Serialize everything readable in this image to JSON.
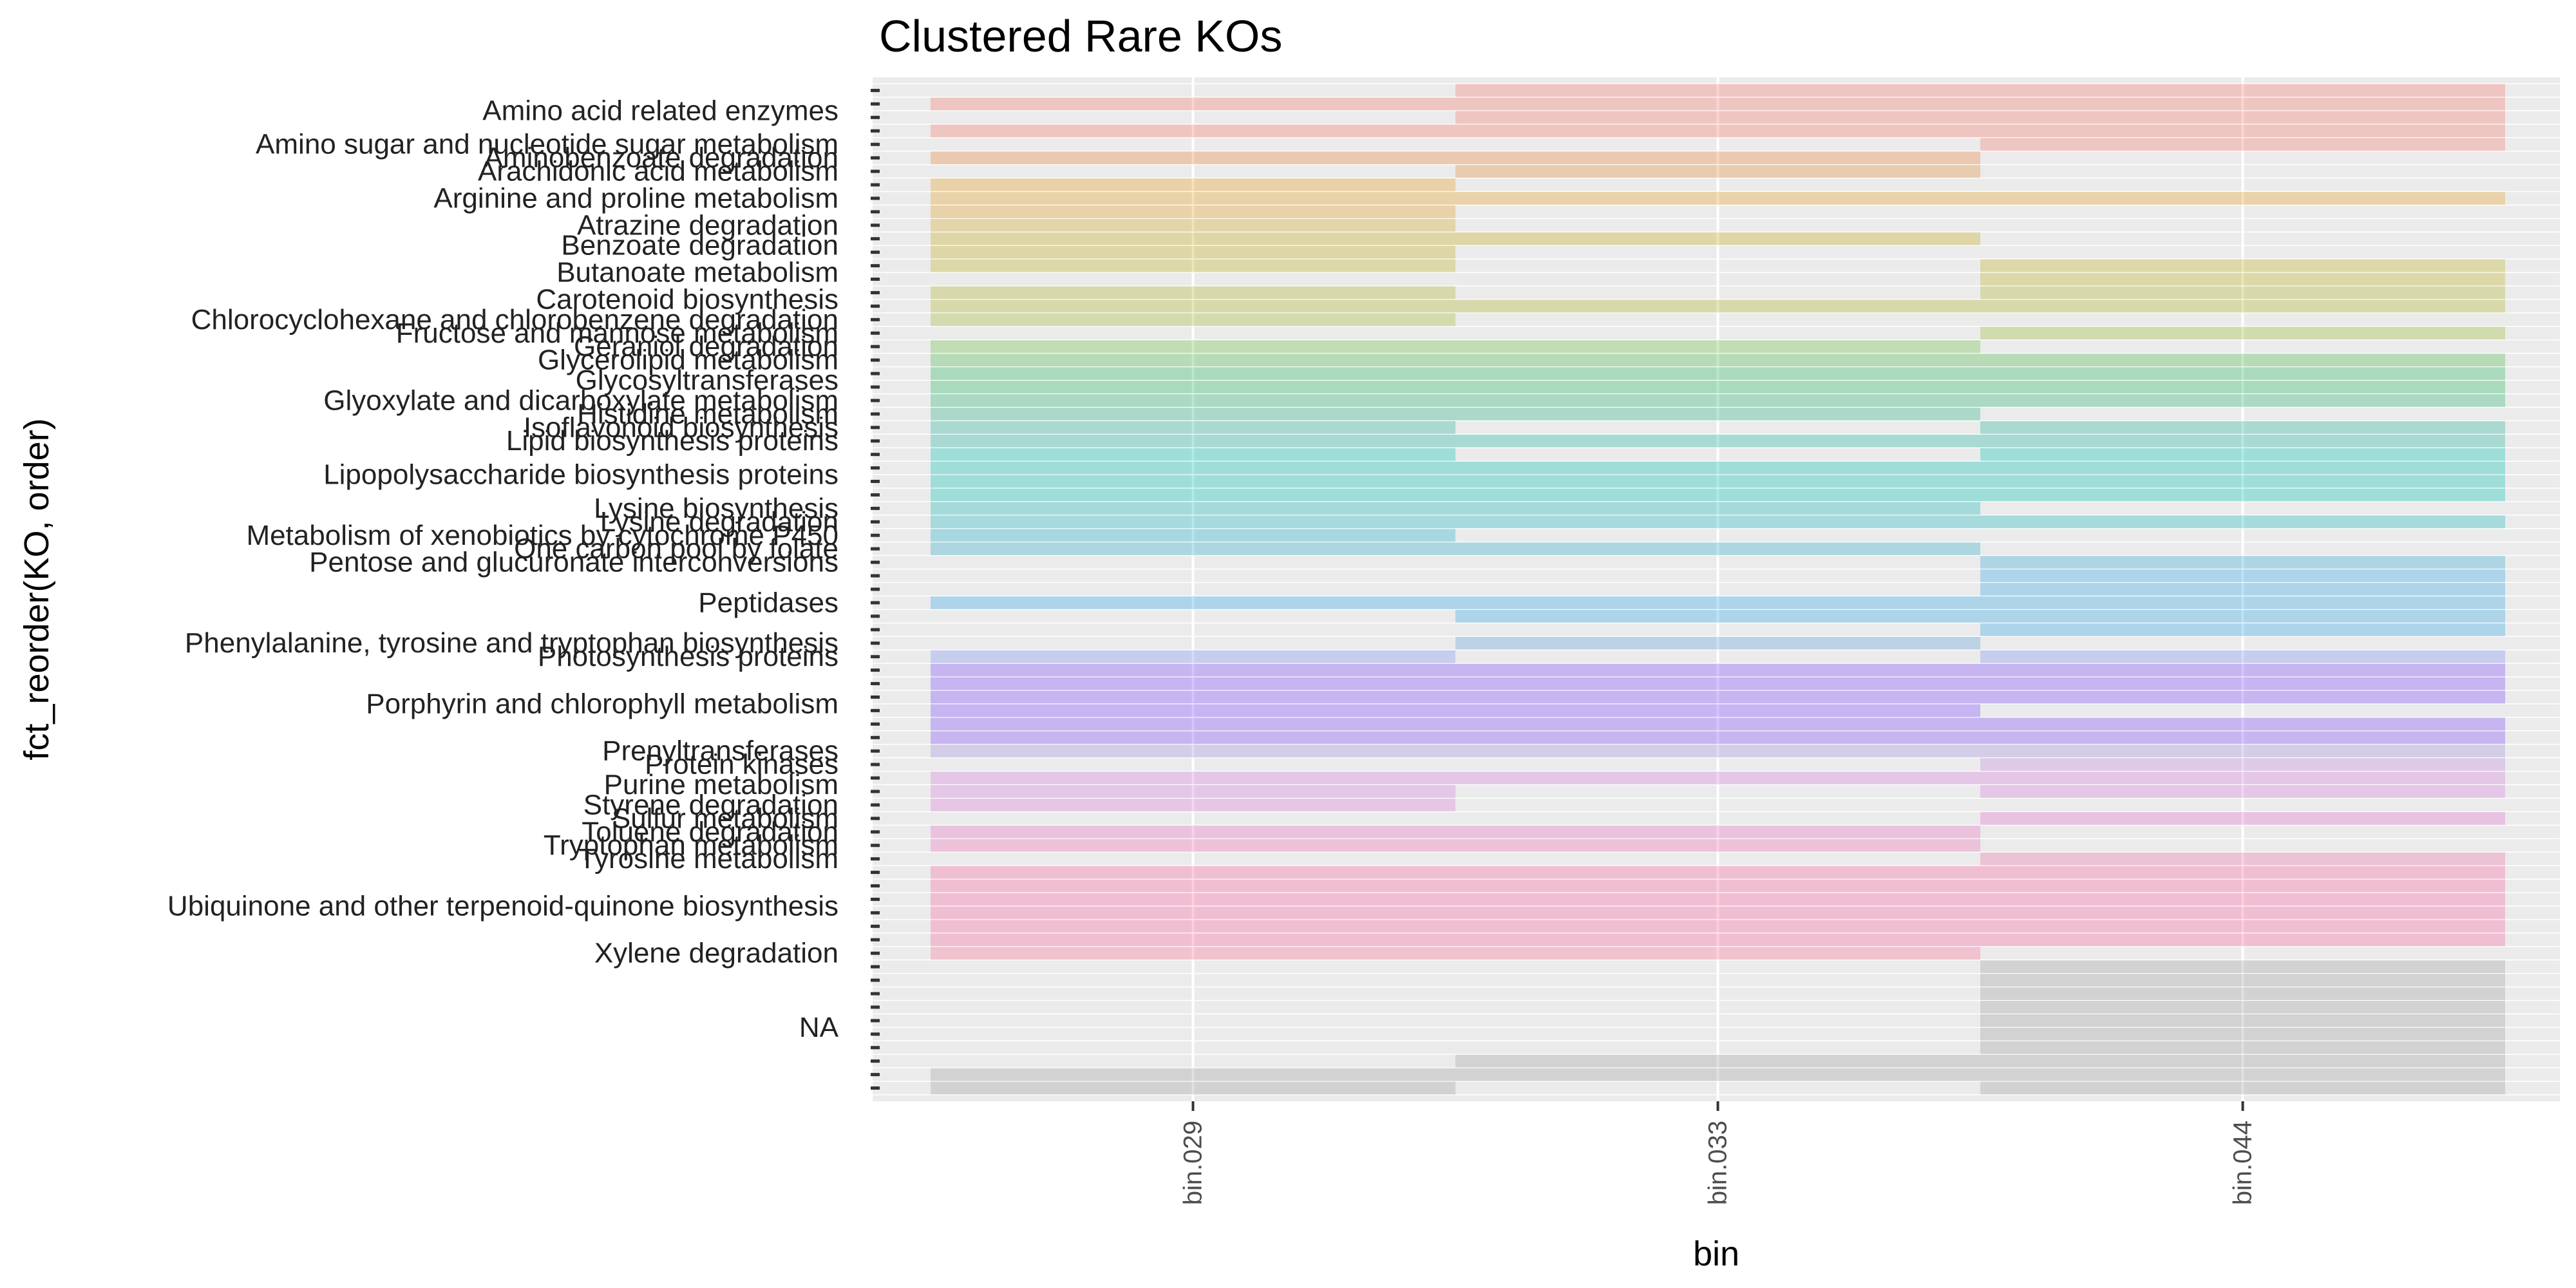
{
  "chart_data": {
    "type": "heatmap",
    "title": "Clustered Rare KOs",
    "xlabel": "bin",
    "ylabel": "fct_reorder(KO, order)",
    "x_categories": [
      "bin.029",
      "bin.033",
      "bin.044"
    ],
    "grid": true,
    "legend": "none",
    "categories": [
      {
        "name": "Amino acid related enzymes",
        "rows": 4,
        "color": "#f8766d",
        "fill": [
          [
            0,
            1,
            0,
            1
          ],
          [
            1,
            1,
            1,
            1
          ],
          [
            1,
            1,
            1,
            1
          ]
        ]
      },
      {
        "name": "Amino sugar and nucleotide sugar metabolism",
        "rows": 1,
        "color": "#f3786a",
        "fill": [
          [
            0
          ],
          [
            0
          ],
          [
            1
          ]
        ]
      },
      {
        "name": "Aminobenzoate degradation",
        "rows": 1,
        "color": "#eb8335",
        "fill": [
          [
            1
          ],
          [
            1
          ],
          [
            0
          ]
        ]
      },
      {
        "name": "Arachidonic acid metabolism",
        "rows": 1,
        "color": "#e48c2e",
        "fill": [
          [
            0
          ],
          [
            1
          ],
          [
            0
          ]
        ]
      },
      {
        "name": "Arginine and proline metabolism",
        "rows": 3,
        "color": "#e5a020",
        "fill": [
          [
            1,
            1,
            1
          ],
          [
            0,
            1,
            0
          ],
          [
            0,
            1,
            0
          ]
        ]
      },
      {
        "name": "Atrazine degradation",
        "rows": 1,
        "color": "#d4a521",
        "fill": [
          [
            1
          ],
          [
            0
          ],
          [
            0
          ]
        ]
      },
      {
        "name": "Benzoate degradation",
        "rows": 2,
        "color": "#c8ab1a",
        "fill": [
          [
            1,
            1
          ],
          [
            1,
            0
          ],
          [
            0,
            0
          ]
        ]
      },
      {
        "name": "Butanoate metabolism",
        "rows": 2,
        "color": "#bdb21d",
        "fill": [
          [
            1,
            0
          ],
          [
            0,
            0
          ],
          [
            1,
            1
          ]
        ]
      },
      {
        "name": "Carotenoid biosynthesis",
        "rows": 2,
        "color": "#adb425",
        "fill": [
          [
            1,
            1
          ],
          [
            0,
            1
          ],
          [
            1,
            1
          ]
        ]
      },
      {
        "name": "Chlorocyclohexane and chlorobenzene degradation",
        "rows": 1,
        "color": "#a3b62d",
        "fill": [
          [
            1
          ],
          [
            0
          ],
          [
            0
          ]
        ]
      },
      {
        "name": "Fructose and mannose metabolism",
        "rows": 1,
        "color": "#98bb2e",
        "fill": [
          [
            0
          ],
          [
            0
          ],
          [
            1
          ]
        ]
      },
      {
        "name": "Geraniol degradation",
        "rows": 1,
        "color": "#6cbd3f",
        "fill": [
          [
            1
          ],
          [
            1
          ],
          [
            0
          ]
        ]
      },
      {
        "name": "Glycerolipid metabolism",
        "rows": 1,
        "color": "#4bbc47",
        "fill": [
          [
            1
          ],
          [
            1
          ],
          [
            1
          ]
        ]
      },
      {
        "name": "Glycosyltransferases",
        "rows": 2,
        "color": "#21b85a",
        "fill": [
          [
            1,
            1
          ],
          [
            1,
            1
          ],
          [
            1,
            1
          ]
        ]
      },
      {
        "name": "Glyoxylate and dicarboxylate metabolism",
        "rows": 1,
        "color": "#26b574",
        "fill": [
          [
            1
          ],
          [
            1
          ],
          [
            1
          ]
        ]
      },
      {
        "name": "Histidine metabolism",
        "rows": 1,
        "color": "#27b283",
        "fill": [
          [
            1
          ],
          [
            1
          ],
          [
            0
          ]
        ]
      },
      {
        "name": "Isoflavonoid biosynthesis",
        "rows": 1,
        "color": "#1fb597",
        "fill": [
          [
            1
          ],
          [
            0
          ],
          [
            1
          ]
        ]
      },
      {
        "name": "Lipid biosynthesis proteins",
        "rows": 1,
        "color": "#1cb7a3",
        "fill": [
          [
            1
          ],
          [
            1
          ],
          [
            1
          ]
        ]
      },
      {
        "name": "Lipopolysaccharide biosynthesis proteins",
        "rows": 4,
        "color": "#00c0b0",
        "fill": [
          [
            1,
            1,
            1,
            1
          ],
          [
            0,
            1,
            1,
            1
          ],
          [
            1,
            1,
            1,
            1
          ]
        ]
      },
      {
        "name": "Lysine biosynthesis",
        "rows": 1,
        "color": "#0fbcb8",
        "fill": [
          [
            1
          ],
          [
            1
          ],
          [
            0
          ]
        ]
      },
      {
        "name": "Lysine degradation",
        "rows": 1,
        "color": "#15b8c2",
        "fill": [
          [
            1
          ],
          [
            1
          ],
          [
            1
          ]
        ]
      },
      {
        "name": "Metabolism of xenobiotics by cytochrome P450",
        "rows": 1,
        "color": "#1cb2c8",
        "fill": [
          [
            1
          ],
          [
            0
          ],
          [
            0
          ]
        ]
      },
      {
        "name": "One carbon pool by folate",
        "rows": 1,
        "color": "#2aaccc",
        "fill": [
          [
            1
          ],
          [
            1
          ],
          [
            0
          ]
        ]
      },
      {
        "name": "Pentose and glucuronate interconversions",
        "rows": 1,
        "color": "#2fa7d6",
        "fill": [
          [
            0
          ],
          [
            0
          ],
          [
            1
          ]
        ]
      },
      {
        "name": "Peptidases",
        "rows": 5,
        "color": "#2ea4e8",
        "fill": [
          [
            0,
            0,
            1,
            0,
            0
          ],
          [
            0,
            0,
            1,
            1,
            0
          ],
          [
            1,
            1,
            1,
            1,
            1
          ]
        ]
      },
      {
        "name": "Phenylalanine, tyrosine and tryptophan biosynthesis",
        "rows": 1,
        "color": "#5a9ee0",
        "fill": [
          [
            0
          ],
          [
            1
          ],
          [
            0
          ]
        ]
      },
      {
        "name": "Photosynthesis proteins",
        "rows": 1,
        "color": "#7b8ff0",
        "fill": [
          [
            1
          ],
          [
            0
          ],
          [
            1
          ]
        ]
      },
      {
        "name": "Porphyrin and chlorophyll metabolism",
        "rows": 6,
        "color": "#7a45ff",
        "fill": [
          [
            1,
            1,
            1,
            1,
            1,
            1
          ],
          [
            1,
            1,
            1,
            1,
            1,
            1
          ],
          [
            1,
            1,
            1,
            0,
            1,
            1
          ]
        ]
      },
      {
        "name": "Prenyltransferases",
        "rows": 1,
        "color": "#a58fe0",
        "fill": [
          [
            1
          ],
          [
            1
          ],
          [
            1
          ]
        ]
      },
      {
        "name": "Protein kinases",
        "rows": 1,
        "color": "#bf86e0",
        "fill": [
          [
            0
          ],
          [
            0
          ],
          [
            1
          ]
        ]
      },
      {
        "name": "Purine metabolism",
        "rows": 2,
        "color": "#d679e0",
        "fill": [
          [
            1,
            1
          ],
          [
            1,
            0
          ],
          [
            1,
            1
          ]
        ]
      },
      {
        "name": "Styrene degradation",
        "rows": 1,
        "color": "#dc78d6",
        "fill": [
          [
            1
          ],
          [
            0
          ],
          [
            0
          ]
        ]
      },
      {
        "name": "Sulfur metabolism",
        "rows": 1,
        "color": "#e76cd0",
        "fill": [
          [
            0
          ],
          [
            0
          ],
          [
            1
          ]
        ]
      },
      {
        "name": "Toluene degradation",
        "rows": 1,
        "color": "#ea6cc0",
        "fill": [
          [
            1
          ],
          [
            1
          ],
          [
            0
          ]
        ]
      },
      {
        "name": "Tryptophan metabolism",
        "rows": 1,
        "color": "#ee6cb8",
        "fill": [
          [
            1
          ],
          [
            1
          ],
          [
            0
          ]
        ]
      },
      {
        "name": "Tyrosine metabolism",
        "rows": 1,
        "color": "#f06ca8",
        "fill": [
          [
            0
          ],
          [
            0
          ],
          [
            1
          ]
        ]
      },
      {
        "name": "Ubiquinone and other terpenoid-quinone biosynthesis",
        "rows": 6,
        "color": "#fb61a0",
        "fill": [
          [
            1,
            1,
            1,
            1,
            1,
            1
          ],
          [
            1,
            1,
            1,
            1,
            1,
            1
          ],
          [
            1,
            1,
            1,
            1,
            1,
            1
          ]
        ]
      },
      {
        "name": "Xylene degradation",
        "rows": 1,
        "color": "#ff6c94",
        "fill": [
          [
            1
          ],
          [
            1
          ],
          [
            0
          ]
        ]
      },
      {
        "name": "NA",
        "rows": 10,
        "color": "#9e9e9e",
        "fill": [
          [
            0,
            0,
            0,
            0,
            0,
            0,
            0,
            0,
            1,
            1
          ],
          [
            0,
            0,
            0,
            0,
            0,
            0,
            0,
            1,
            1,
            0
          ],
          [
            1,
            1,
            1,
            1,
            1,
            1,
            1,
            1,
            1,
            1
          ]
        ]
      }
    ]
  }
}
